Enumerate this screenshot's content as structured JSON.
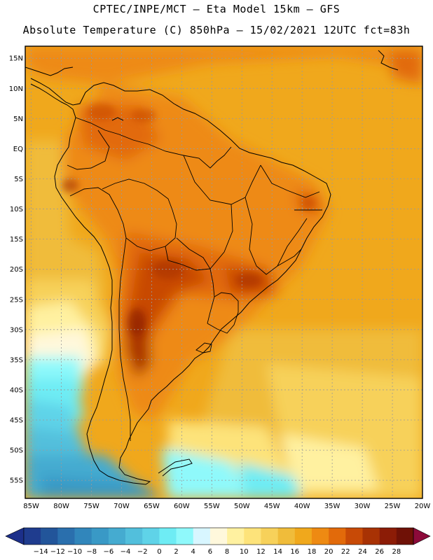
{
  "header": {
    "line1": "CPTEC/INPE/MCT –  Eta Model 15km – GFS",
    "line2": "Absolute Temperature (C) 850hPa – 15/02/2021 12UTC fct=83h"
  },
  "map": {
    "lat_range": [
      -58,
      17
    ],
    "lon_range": [
      -86,
      -20
    ],
    "lat_ticks": [
      "15N",
      "10N",
      "5N",
      "EQ",
      "5S",
      "10S",
      "15S",
      "20S",
      "25S",
      "30S",
      "35S",
      "40S",
      "45S",
      "50S",
      "55S"
    ],
    "lon_ticks": [
      "85W",
      "80W",
      "75W",
      "70W",
      "65W",
      "60W",
      "55W",
      "50W",
      "45W",
      "40W",
      "35W",
      "30W",
      "25W",
      "20W"
    ]
  },
  "colorbar": {
    "labels": [
      "-14",
      "-12",
      "-10",
      "-8",
      "-6",
      "-4",
      "-2",
      "0",
      "2",
      "4",
      "6",
      "8",
      "10",
      "12",
      "14",
      "16",
      "18",
      "20",
      "22",
      "24",
      "26",
      "28"
    ],
    "under_color": "#1c2f8a",
    "over_color": "#8c0a3a",
    "colors": [
      "#1f3c8e",
      "#22559a",
      "#2a6fad",
      "#3186bb",
      "#3999c6",
      "#45abd0",
      "#52bfdc",
      "#5fd3e8",
      "#6eecf4",
      "#8ff9fb",
      "#d8f6ff",
      "#fff8dc",
      "#fff1a0",
      "#fde37a",
      "#f7d15a",
      "#f0bc3a",
      "#f0a81c",
      "#ee8a12",
      "#e26a0a",
      "#c84a06",
      "#a83204",
      "#8c1c06",
      "#6f1106"
    ]
  }
}
